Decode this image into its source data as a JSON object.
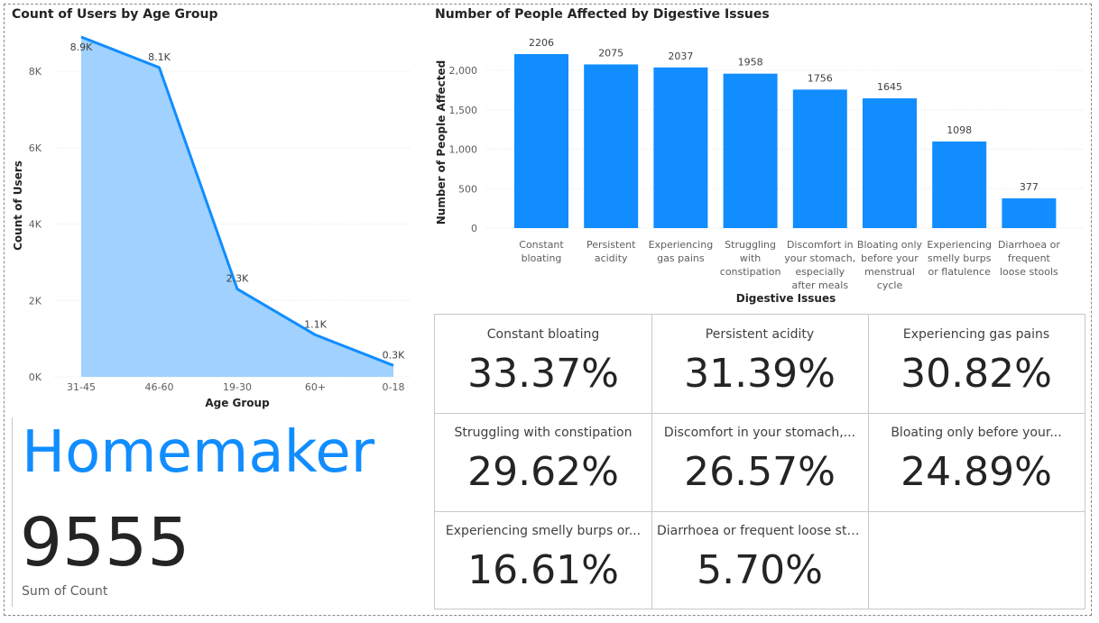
{
  "left_chart": {
    "title": "Count of Users by Age Group",
    "ylabel": "Count of Users",
    "xlabel": "Age Group",
    "yticks": [
      "0K",
      "2K",
      "4K",
      "6K",
      "8K"
    ]
  },
  "right_chart": {
    "title": "Number of People Affected by Digestive Issues",
    "ylabel": "Number of People Affected",
    "xlabel": "Digestive Issues",
    "yticks": [
      "0",
      "500",
      "1,000",
      "1,500",
      "2,000"
    ]
  },
  "chart_data": [
    {
      "type": "area",
      "title": "Count of Users by Age Group",
      "xlabel": "Age Group",
      "ylabel": "Count of Users",
      "categories": [
        "31-45",
        "46-60",
        "19-30",
        "60+",
        "0-18"
      ],
      "values": [
        8900,
        8100,
        2300,
        1100,
        300
      ],
      "data_labels": [
        "8.9K",
        "8.1K",
        "2.3K",
        "1.1K",
        "0.3K"
      ],
      "ylim": [
        0,
        8900
      ],
      "grid": true,
      "color": "#118DFF",
      "fill": "#A0D1FF"
    },
    {
      "type": "bar",
      "title": "Number of People Affected by Digestive Issues",
      "xlabel": "Digestive Issues",
      "ylabel": "Number of People Affected",
      "categories": [
        [
          "Constant",
          "bloating"
        ],
        [
          "Persistent",
          "acidity"
        ],
        [
          "Experiencing",
          "gas pains"
        ],
        [
          "Struggling",
          "with",
          "constipation"
        ],
        [
          "Discomfort in",
          "your stomach,",
          "especially",
          "after meals"
        ],
        [
          "Bloating only",
          "before your",
          "menstrual",
          "cycle"
        ],
        [
          "Experiencing",
          "smelly burps",
          "or flatulence"
        ],
        [
          "Diarrhoea or",
          "frequent",
          "loose stools"
        ]
      ],
      "values": [
        2206,
        2075,
        2037,
        1958,
        1756,
        1645,
        1098,
        377
      ],
      "data_labels": [
        "2206",
        "2075",
        "2037",
        "1958",
        "1756",
        "1645",
        "1098",
        "377"
      ],
      "ylim": [
        0,
        2206
      ],
      "grid": true,
      "color": "#118DFF"
    }
  ],
  "card": {
    "occupation": "Homemaker",
    "value": "9555",
    "label": "Sum of Count"
  },
  "kpis": [
    {
      "label": "Constant bloating",
      "value": "33.37%"
    },
    {
      "label": "Persistent acidity",
      "value": "31.39%"
    },
    {
      "label": "Experiencing gas pains",
      "value": "30.82%"
    },
    {
      "label": "Struggling with constipation",
      "value": "29.62%"
    },
    {
      "label": "Discomfort in your stomach,...",
      "value": "26.57%"
    },
    {
      "label": "Bloating only before your...",
      "value": "24.89%"
    },
    {
      "label": "Experiencing smelly burps or...",
      "value": "16.61%"
    },
    {
      "label": "Diarrhoea or frequent loose stools",
      "value": "5.70%"
    }
  ]
}
